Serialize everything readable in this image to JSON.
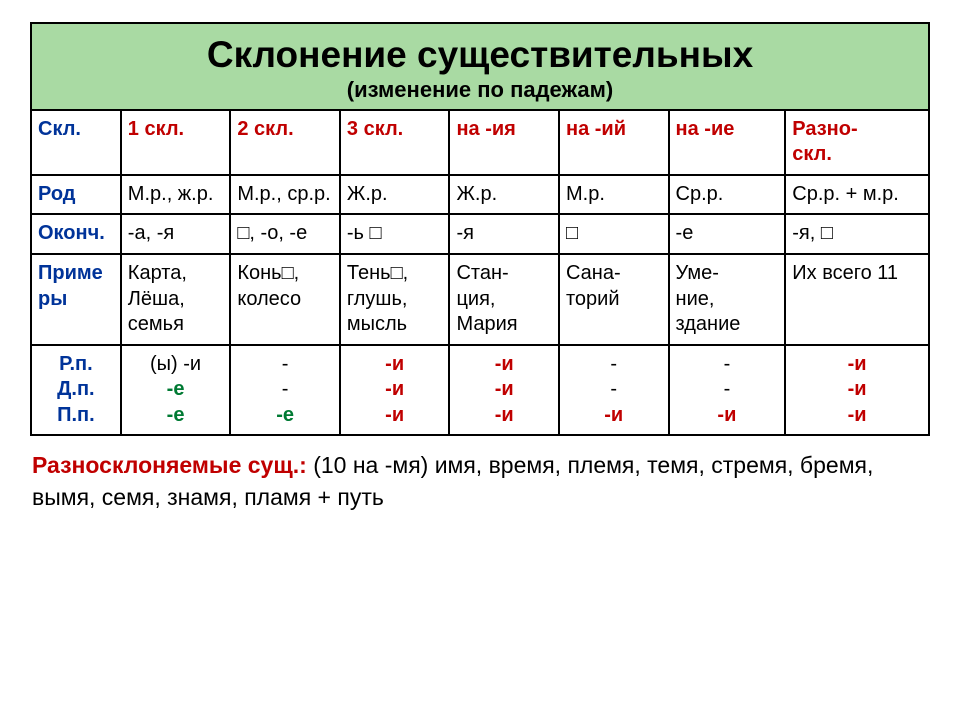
{
  "header": {
    "title": "Склонение существительных",
    "subtitle": "(изменение по падежам)",
    "bg": "#a9daa3"
  },
  "colors": {
    "label": "#003399",
    "col_header": "#c00000",
    "green": "#007a33",
    "red": "#c00000",
    "border": "#000000"
  },
  "col_widths_pct": [
    10,
    12.2,
    12.2,
    12.2,
    12.2,
    12.2,
    13,
    16
  ],
  "rows": {
    "skl": {
      "label": "Скл.",
      "cells": [
        "1 скл.",
        "2 скл.",
        "3 скл.",
        "на -ия",
        "на -ий",
        "на -ие",
        "Разно-\nскл."
      ]
    },
    "rod": {
      "label": "Род",
      "cells": [
        "М.р., ж.р.",
        "М.р., ср.р.",
        "Ж.р.",
        "Ж.р.",
        "М.р.",
        "Ср.р.",
        "Ср.р. + м.р."
      ]
    },
    "okonch": {
      "label": "Оконч.",
      "cells": [
        "-а, -я",
        "□, -о, -е",
        " -ь □",
        "-я",
        "□",
        "-е",
        "-я, □"
      ]
    },
    "primery": {
      "label": "Приме\nры",
      "cells": [
        "Карта, Лёша, семья",
        "Конь□, колесо",
        "Тень□, глушь, мысль",
        "Стан-\nция, Мария",
        "Сана-\nторий",
        "Уме-\nние, здание",
        "Их всего 11"
      ]
    },
    "cases": {
      "labels": [
        "Р.п.",
        "Д.п.",
        "П.п."
      ],
      "cols": [
        {
          "rp": "(ы) -и",
          "dp": "-е",
          "pp": "-е",
          "rp_color": "#000000",
          "dp_color": "#007a33",
          "pp_color": "#007a33",
          "bold_rp": false
        },
        {
          "rp": "-",
          "dp": "-",
          "pp": "-е",
          "rp_color": "#000000",
          "dp_color": "#000000",
          "pp_color": "#007a33",
          "bold_rp": false
        },
        {
          "rp": "-и",
          "dp": "-и",
          "pp": "-и",
          "rp_color": "#c00000",
          "dp_color": "#c00000",
          "pp_color": "#c00000",
          "bold_rp": true
        },
        {
          "rp": "-и",
          "dp": "-и",
          "pp": "-и",
          "rp_color": "#c00000",
          "dp_color": "#c00000",
          "pp_color": "#c00000",
          "bold_rp": true
        },
        {
          "rp": "-",
          "dp": "-",
          "pp": "-и",
          "rp_color": "#000000",
          "dp_color": "#000000",
          "pp_color": "#c00000",
          "bold_rp": false
        },
        {
          "rp": "-",
          "dp": "-",
          "pp": "-и",
          "rp_color": "#000000",
          "dp_color": "#000000",
          "pp_color": "#c00000",
          "bold_rp": false
        },
        {
          "rp": "-и",
          "dp": "-и",
          "pp": "-и",
          "rp_color": "#c00000",
          "dp_color": "#c00000",
          "pp_color": "#c00000",
          "bold_rp": true
        }
      ]
    }
  },
  "footnote": {
    "lead": "Разносклоняемые сущ.:",
    "text": " (10 на -мя)   имя, время, племя, темя, стремя, бремя, вымя, семя, знамя, пламя  +  путь"
  }
}
